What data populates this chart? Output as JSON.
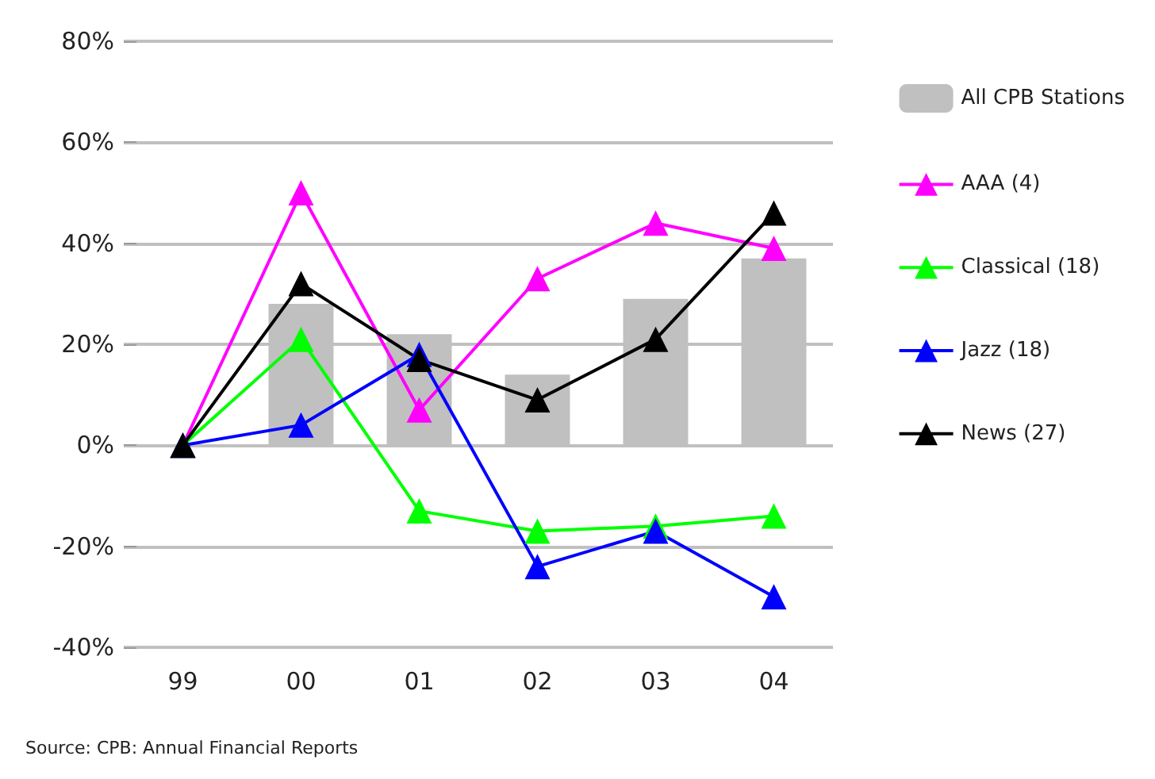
{
  "chart_data": {
    "type": "bar",
    "categories": [
      "99",
      "00",
      "01",
      "02",
      "03",
      "04"
    ],
    "series": [
      {
        "name": "All CPB Stations",
        "color": "#c0c0c0",
        "values": [
          null,
          28,
          22,
          14,
          29,
          37
        ]
      },
      {
        "name": "AAA (4)",
        "type": "line",
        "color": "#ff00ff",
        "values": [
          0,
          50,
          7,
          33,
          44,
          39
        ]
      },
      {
        "name": "Classical (18)",
        "type": "line",
        "color": "#00ff00",
        "values": [
          0,
          21,
          -13,
          -17,
          -16,
          -14
        ]
      },
      {
        "name": "Jazz (18)",
        "type": "line",
        "color": "#0000ff",
        "values": [
          0,
          4,
          18,
          -24,
          -17,
          -30
        ]
      },
      {
        "name": "News (27)",
        "type": "line",
        "color": "#000000",
        "values": [
          0,
          32,
          17,
          9,
          21,
          46
        ]
      }
    ],
    "ylim": [
      -40,
      80
    ],
    "yticks": [
      {
        "value": -40,
        "label": "-40%"
      },
      {
        "value": -20,
        "label": "-20%"
      },
      {
        "value": 0,
        "label": "0%"
      },
      {
        "value": 20,
        "label": "20%"
      },
      {
        "value": 40,
        "label": "40%"
      },
      {
        "value": 60,
        "label": "60%"
      },
      {
        "value": 80,
        "label": "80%"
      }
    ],
    "grid": "y",
    "legend": "right",
    "marker": "triangle",
    "line_style": "solid",
    "annotations": [
      "Source: CPB: Annual Financial Reports"
    ]
  }
}
